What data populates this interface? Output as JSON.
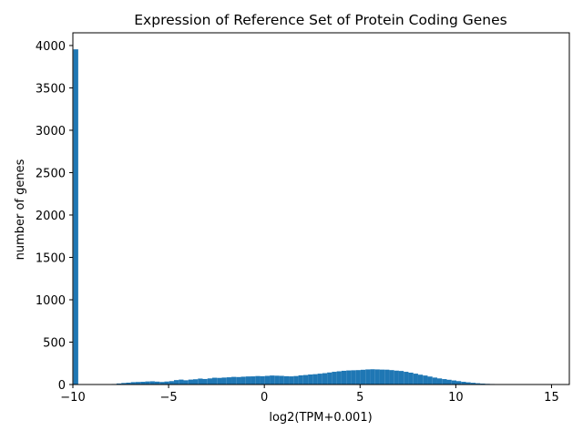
{
  "chart_data": {
    "type": "bar",
    "title": "Expression of Reference Set of Protein Coding Genes",
    "xlabel": "log2(TPM+0.001)",
    "ylabel": "number of genes",
    "xlim": [
      -10,
      15.93
    ],
    "ylim": [
      0,
      4150
    ],
    "xticks": [
      -10,
      -5,
      0,
      5,
      10,
      15
    ],
    "yticks": [
      0,
      500,
      1000,
      1500,
      2000,
      2500,
      3000,
      3500,
      4000
    ],
    "bin_start": -9.97,
    "bin_width": 0.25,
    "values": [
      3955,
      0,
      0,
      0,
      0,
      0,
      0,
      5,
      6,
      12,
      18,
      22,
      28,
      30,
      32,
      36,
      38,
      34,
      30,
      35,
      40,
      52,
      58,
      50,
      58,
      62,
      70,
      65,
      72,
      80,
      78,
      82,
      85,
      90,
      88,
      92,
      95,
      96,
      100,
      98,
      102,
      106,
      104,
      102,
      98,
      96,
      100,
      108,
      112,
      118,
      122,
      128,
      134,
      142,
      150,
      156,
      162,
      166,
      168,
      170,
      174,
      178,
      180,
      178,
      176,
      175,
      170,
      164,
      160,
      150,
      140,
      128,
      116,
      106,
      94,
      82,
      72,
      64,
      56,
      48,
      40,
      32,
      26,
      20,
      15,
      11,
      8,
      6,
      5,
      4,
      3,
      3,
      2,
      2,
      2,
      1,
      1,
      1,
      1,
      1,
      0,
      0,
      1,
      0,
      0,
      0,
      0,
      1,
      0,
      0,
      0,
      0,
      0,
      0,
      0
    ],
    "color": "#1f77b4",
    "grid": false,
    "legend": "none"
  }
}
